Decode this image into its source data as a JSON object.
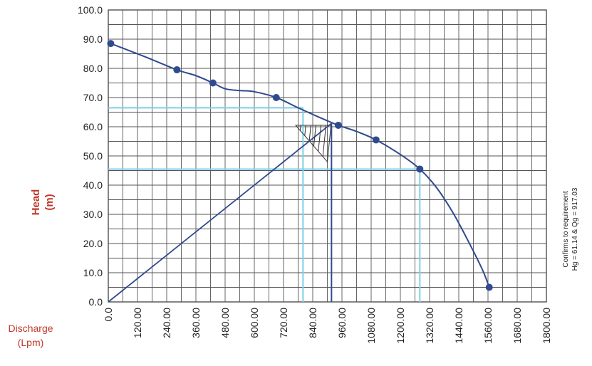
{
  "chart_data": {
    "type": "line",
    "ylabel_line1": "Head",
    "ylabel_line2": "(m)",
    "xlabel_line1": "Discharge",
    "xlabel_line2": "(Lpm)",
    "xlim": [
      0,
      1800
    ],
    "ylim": [
      0,
      100
    ],
    "x_ticks": [
      "0.0",
      "120.00",
      "240.00",
      "360.00",
      "480.00",
      "600.00",
      "720.00",
      "840.00",
      "960.00",
      "1080.00",
      "1200.00",
      "1320.00",
      "1440.00",
      "1560.00",
      "1680.00",
      "1800.00"
    ],
    "y_ticks": [
      "100.0",
      "90.0",
      "80.0",
      "70.0",
      "60.0",
      "50.0",
      "40.0",
      "30.0",
      "20.0",
      "10.0",
      "0.0"
    ],
    "grid": true,
    "series": [
      {
        "kind": "pump-curve",
        "color": "#2f4a8f",
        "markers": [
          {
            "x": 10,
            "y": 88.5
          },
          {
            "x": 282,
            "y": 79.5
          },
          {
            "x": 430,
            "y": 75
          },
          {
            "x": 690,
            "y": 70
          },
          {
            "x": 945,
            "y": 60.5
          },
          {
            "x": 1100,
            "y": 55.5
          },
          {
            "x": 1280,
            "y": 45.5
          },
          {
            "x": 1565,
            "y": 5
          }
        ],
        "curve": [
          {
            "x": 10,
            "y": 88.5
          },
          {
            "x": 150,
            "y": 84
          },
          {
            "x": 282,
            "y": 79.5
          },
          {
            "x": 360,
            "y": 77.5
          },
          {
            "x": 430,
            "y": 75
          },
          {
            "x": 480,
            "y": 73
          },
          {
            "x": 540,
            "y": 72.4
          },
          {
            "x": 600,
            "y": 72
          },
          {
            "x": 690,
            "y": 70
          },
          {
            "x": 780,
            "y": 66.5
          },
          {
            "x": 860,
            "y": 63.5
          },
          {
            "x": 945,
            "y": 60.5
          },
          {
            "x": 1020,
            "y": 58.4
          },
          {
            "x": 1100,
            "y": 55.5
          },
          {
            "x": 1200,
            "y": 50.5
          },
          {
            "x": 1280,
            "y": 45.5
          },
          {
            "x": 1350,
            "y": 39
          },
          {
            "x": 1420,
            "y": 30
          },
          {
            "x": 1490,
            "y": 19
          },
          {
            "x": 1540,
            "y": 10.5
          },
          {
            "x": 1565,
            "y": 5
          }
        ]
      },
      {
        "kind": "system-line",
        "color": "#2f4a8f",
        "points": [
          {
            "x": 0,
            "y": 0
          },
          {
            "x": 917.03,
            "y": 61.14
          }
        ]
      },
      {
        "kind": "operating-vertical",
        "color": "#2f4a8f",
        "x": 917.03,
        "y_top": 61.14
      },
      {
        "kind": "light-guides",
        "color": "#7fcfe8",
        "guides": [
          {
            "y": 66.5,
            "x_end": 800
          },
          {
            "y": 45.5,
            "x_end": 1280
          }
        ]
      }
    ],
    "hatch_triangle": {
      "color": "#333333",
      "points": [
        {
          "x": 770,
          "y": 60.5
        },
        {
          "x": 915,
          "y": 60.5
        },
        {
          "x": 900,
          "y": 48
        }
      ]
    },
    "annotation_line1": "Confirms to requirement",
    "annotation_line2": "Hg = 61.14 & Qg = 917.03"
  }
}
